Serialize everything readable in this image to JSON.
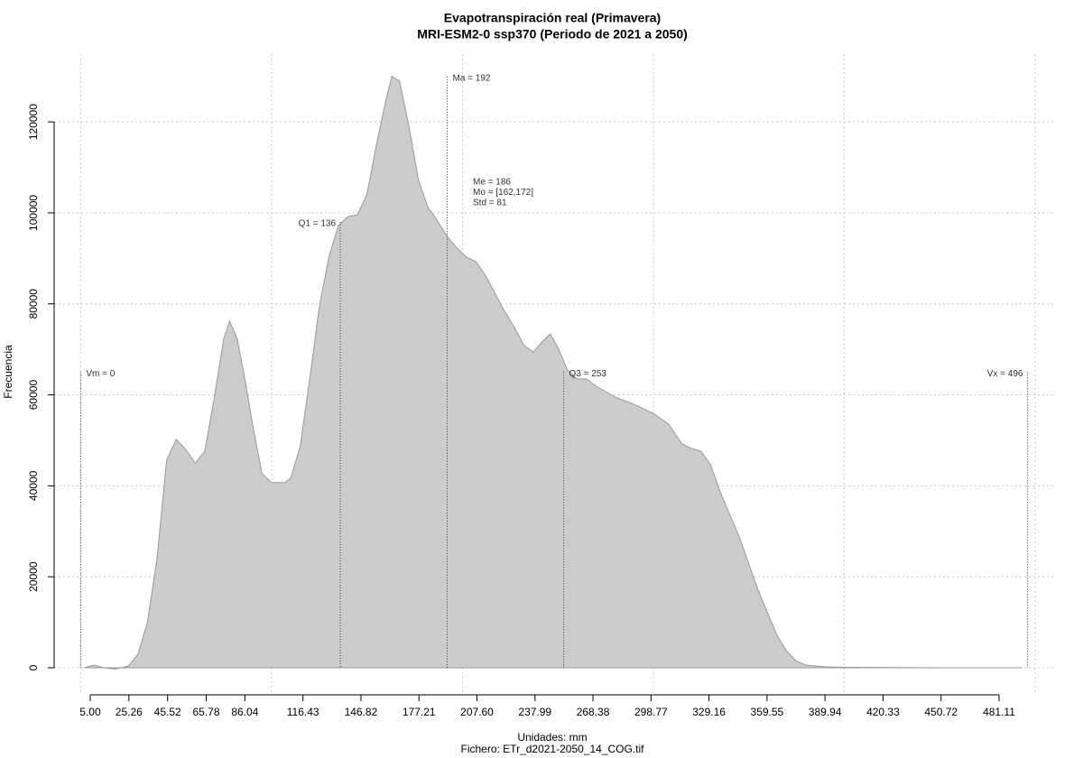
{
  "chart_data": {
    "type": "area",
    "title": "Evapotranspiración real (Primavera)",
    "subtitle": "MRI-ESM2-0 ssp370 (Periodo de 2021 a 2050)",
    "x_label": "Unidades: mm",
    "caption": "Fichero: ETr_d2021-2050_14_COG.tif",
    "y_label": "Frecuencia",
    "x": [
      2,
      7,
      12,
      18,
      25,
      30,
      35,
      40,
      45,
      50,
      55,
      60,
      65,
      70,
      75,
      78,
      82,
      86,
      90,
      95,
      100,
      107,
      110,
      115,
      120,
      125,
      130,
      135,
      140,
      145,
      150,
      155,
      160,
      163,
      167,
      172,
      177,
      182,
      187,
      192,
      197,
      202,
      207,
      212,
      217,
      222,
      227,
      232,
      237,
      242,
      246,
      250,
      255,
      260,
      265,
      270,
      280,
      290,
      300,
      308,
      315,
      320,
      325,
      330,
      335,
      340,
      345,
      350,
      355,
      360,
      365,
      370,
      375,
      380,
      390,
      400,
      450,
      493
    ],
    "series": [
      {
        "color": "#cccccc",
        "values": [
          0,
          600,
          0,
          -300,
          400,
          3000,
          10000,
          24000,
          45600,
          50200,
          48000,
          45000,
          47600,
          59500,
          72400,
          76200,
          72400,
          63500,
          53600,
          42700,
          40700,
          40700,
          41700,
          48600,
          63500,
          79400,
          90300,
          97200,
          99200,
          99600,
          104200,
          115100,
          125000,
          130000,
          129000,
          119000,
          107100,
          101200,
          98200,
          94800,
          92300,
          90300,
          89300,
          86300,
          82300,
          78400,
          75000,
          71000,
          69400,
          71800,
          73400,
          70400,
          65500,
          63500,
          63500,
          61900,
          59500,
          57900,
          55900,
          53600,
          49200,
          48200,
          47600,
          44600,
          38700,
          33700,
          28800,
          22800,
          16900,
          11900,
          6900,
          3600,
          1400,
          600,
          200,
          100,
          0,
          0
        ]
      }
    ],
    "xlim": [
      -13.9,
      510.9
    ],
    "ylim": [
      -5950,
      134900
    ],
    "xticks": [
      {
        "value": 5,
        "label": "5.00"
      },
      25.26,
      45.52,
      65.78,
      86.04,
      116.43,
      146.82,
      177.21,
      {
        "value": 207.6,
        "label": "207.60"
      },
      237.99,
      268.38,
      298.77,
      329.16,
      359.55,
      389.94,
      420.33,
      450.72,
      481.11
    ],
    "yticks": [
      0,
      20000,
      40000,
      60000,
      80000,
      100000,
      120000
    ],
    "xgrid": [
      0,
      100,
      200,
      300,
      400,
      500
    ],
    "grid": true,
    "markers": [
      {
        "label": "Vm = 0",
        "x": 0,
        "y": 65000
      },
      {
        "label": "Q1 = 136",
        "x": 136,
        "y": 98000
      },
      {
        "label": "Ma = 192",
        "x": 192,
        "y": 130000
      },
      {
        "label": "Q3 = 253",
        "x": 253,
        "y": 65000
      },
      {
        "label": "Vx = 496",
        "x": 496,
        "y": 65000
      }
    ],
    "stats": [
      "Me = 186",
      "Mo = [162,172]",
      "Std = 81"
    ]
  }
}
